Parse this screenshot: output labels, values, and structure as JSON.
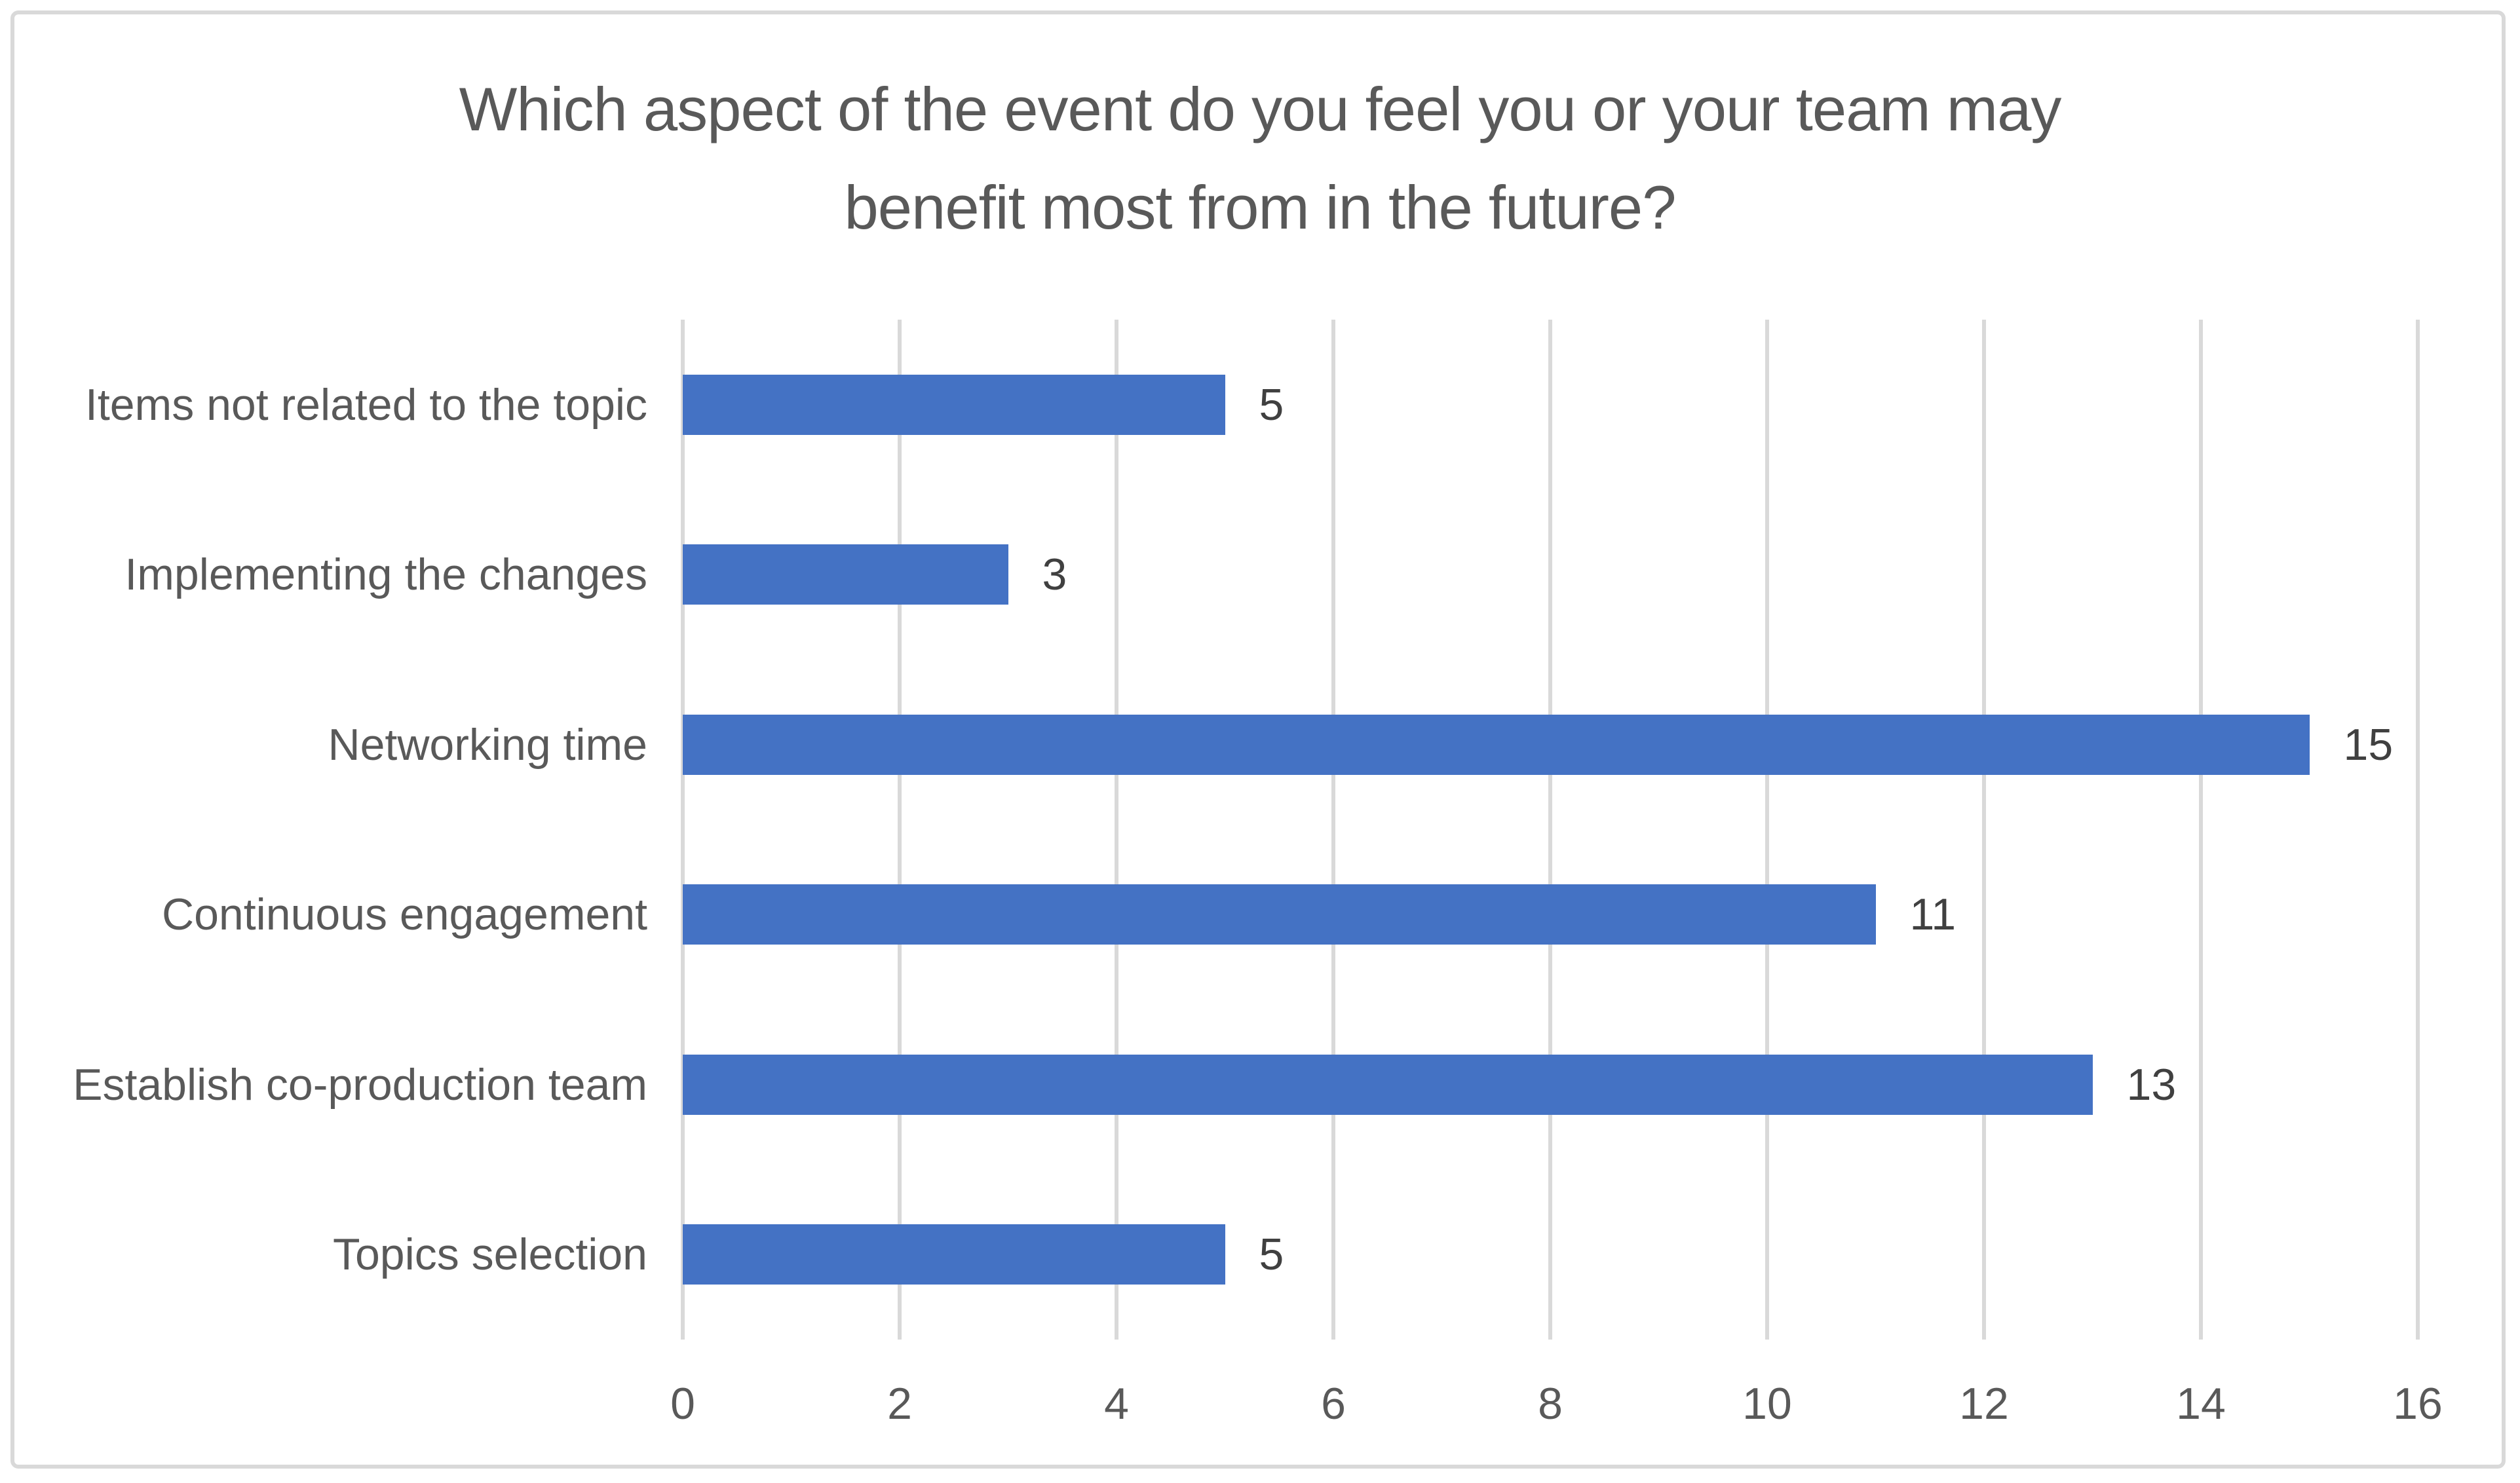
{
  "chart_data": {
    "type": "bar",
    "orientation": "horizontal",
    "title": "Which aspect of the event do you feel you or your team may benefit most from in the future?",
    "title_lines": [
      "Which aspect of the event do you feel you or your team may",
      "benefit most from in the future?"
    ],
    "categories": [
      "Items not related to the topic",
      "Implementing the changes",
      "Networking time",
      "Continuous engagement",
      "Establish co-production team",
      "Topics selection"
    ],
    "values": [
      5,
      3,
      15,
      11,
      13,
      5
    ],
    "data_labels": [
      "5",
      "3",
      "15",
      "11",
      "13",
      "5"
    ],
    "xlabel": "",
    "ylabel": "",
    "xlim": [
      0,
      16
    ],
    "xticks": [
      0,
      2,
      4,
      6,
      8,
      10,
      12,
      14,
      16
    ],
    "grid": "vertical-only",
    "legend": "none",
    "colors": {
      "bar": "#4472C4",
      "gridline": "#D9D9D9",
      "frame_border": "#D9D9D9",
      "title_text": "#595959",
      "axis_text": "#595959",
      "data_label_text": "#404040",
      "background": "#FFFFFF"
    }
  }
}
